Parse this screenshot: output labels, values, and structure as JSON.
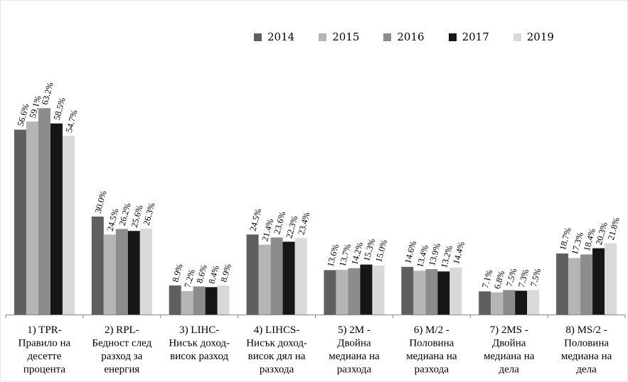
{
  "chart_data": {
    "type": "bar",
    "title": "",
    "xlabel": "",
    "ylabel": "",
    "ylim": [
      0,
      70
    ],
    "grid": false,
    "legend_position": "top",
    "categories": [
      [
        "1) TPR-",
        "Правило на",
        "десетте",
        "процента"
      ],
      [
        "2) RPL-",
        "Бедност след",
        "разход за",
        "енергия"
      ],
      [
        "3) LIHC-",
        "Нисък доход-",
        "висок разход"
      ],
      [
        "4) LIHCS-",
        "Нисък доход-",
        "висок дял на",
        "разхода"
      ],
      [
        "5) 2M -",
        "Двойна",
        "медиана на",
        "разхода"
      ],
      [
        "6) M/2 -",
        "Половина",
        "медиана на",
        "разхода"
      ],
      [
        "7) 2MS -",
        "Двойна",
        "медиана на",
        "дела"
      ],
      [
        "8) MS/2 -",
        "Половина",
        "медиана на",
        "дела"
      ]
    ],
    "series": [
      {
        "name": "2014",
        "color": "#5f5f5f",
        "values": [
          56.6,
          30.0,
          8.9,
          24.5,
          13.6,
          14.6,
          7.1,
          18.7
        ],
        "labels": [
          "56.6%",
          "30.0%",
          "8.9%",
          "24.5%",
          "13.6%",
          "14.6%",
          "7.1%",
          "18.7%"
        ]
      },
      {
        "name": "2015",
        "color": "#b5b5b5",
        "values": [
          59.1,
          24.5,
          7.2,
          21.4,
          13.7,
          13.4,
          6.8,
          17.3
        ],
        "labels": [
          "59.1%",
          "24.5%",
          "7.2%",
          "21.4%",
          "13.7%",
          "13.4%",
          "6.8%",
          "17.3%"
        ]
      },
      {
        "name": "2016",
        "color": "#8c8c8c",
        "values": [
          63.2,
          26.2,
          8.6,
          23.6,
          14.2,
          13.9,
          7.5,
          18.4
        ],
        "labels": [
          "63.2%",
          "26.2%",
          "8.6%",
          "23.6%",
          "14.2%",
          "13.9%",
          "7.5%",
          "18.4%"
        ]
      },
      {
        "name": "2017",
        "color": "#161616",
        "values": [
          58.5,
          25.6,
          8.4,
          22.3,
          15.3,
          13.2,
          7.3,
          20.3
        ],
        "labels": [
          "58.5%",
          "25.6%",
          "8.4%",
          "22.3%",
          "15.3%",
          "13.2%",
          "7.3%",
          "20.3%"
        ]
      },
      {
        "name": "2019",
        "color": "#d9d9d9",
        "values": [
          54.7,
          26.3,
          8.9,
          23.4,
          15.0,
          14.4,
          7.5,
          21.8
        ],
        "labels": [
          "54.7%",
          "26.3%",
          "8.9%",
          "23.4%",
          "15.0%",
          "14.4%",
          "7.5%",
          "21.8%"
        ]
      }
    ]
  }
}
